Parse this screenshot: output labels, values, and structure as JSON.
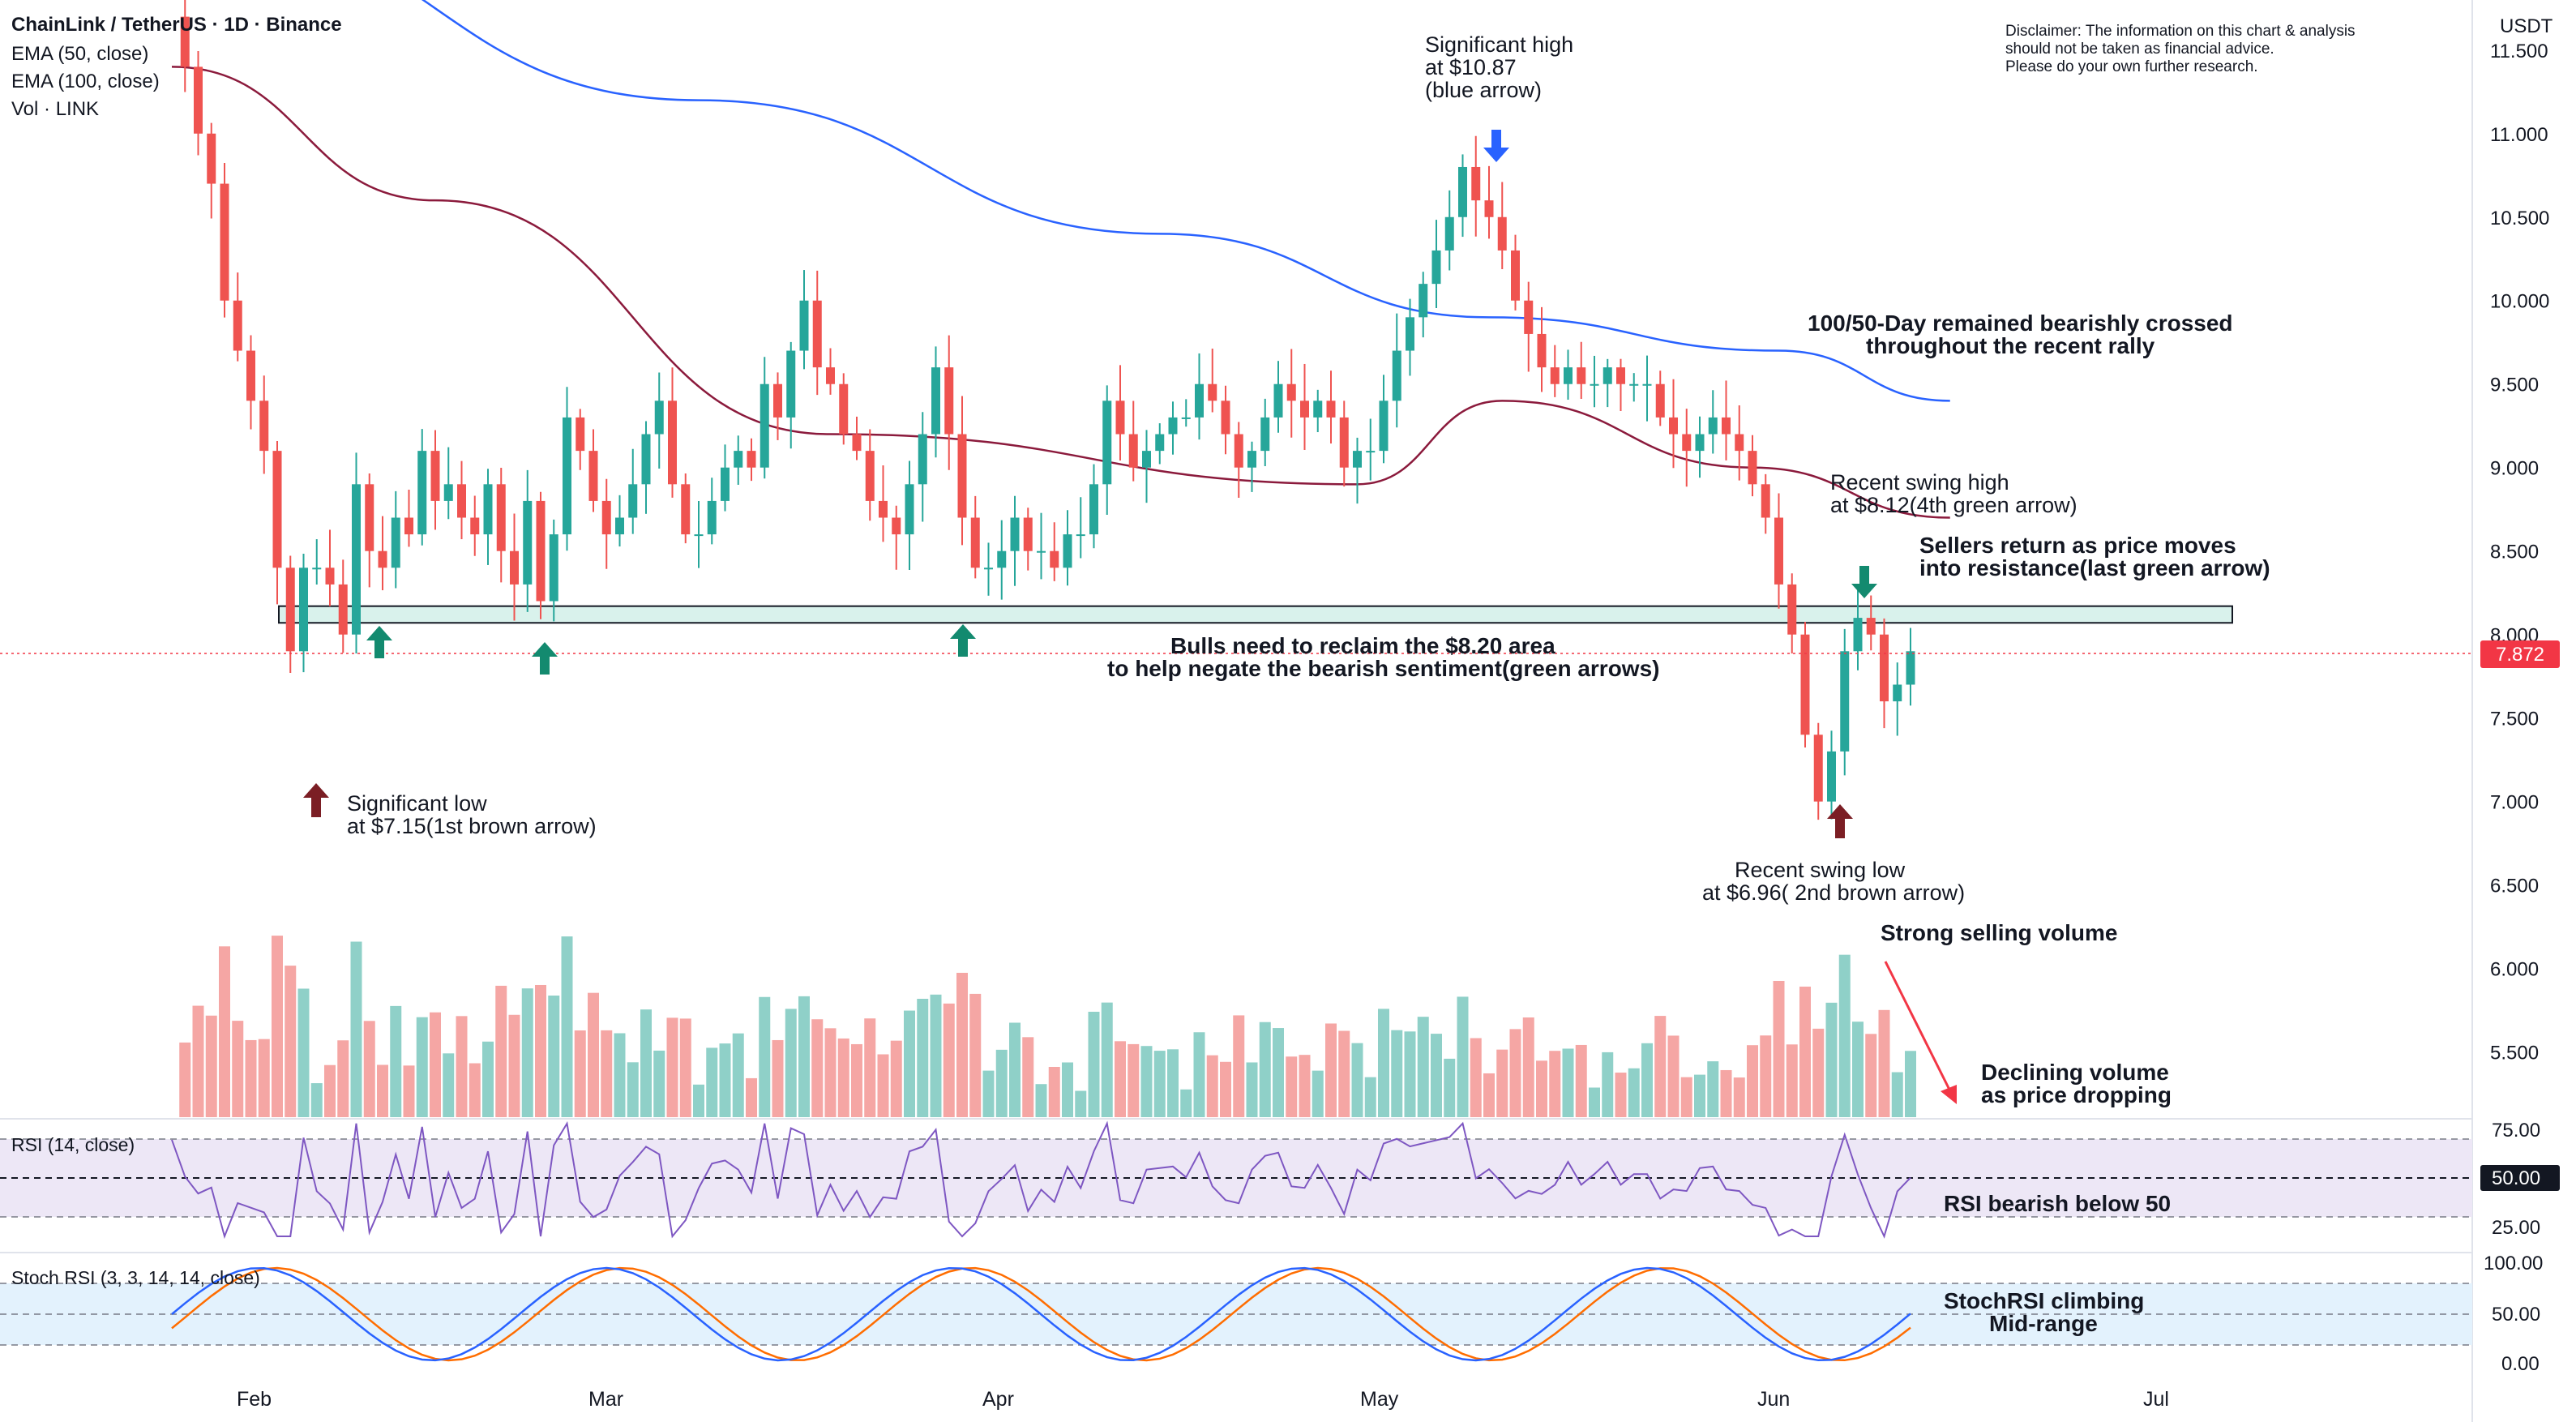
{
  "header": {
    "symbol": "ChainLink / TetherUS · 1D · Binance",
    "indicators": [
      "EMA (50, close)",
      "EMA (100, close)",
      "Vol · LINK"
    ],
    "currency": "USDT"
  },
  "disclaimer": [
    "Disclaimer: The information on this chart & analysis",
    "should not be taken as financial advice.",
    "Please do your own further research."
  ],
  "colors": {
    "up": "#26a69a",
    "down": "#ef5350",
    "vol_up": "#8fd0c8",
    "vol_down": "#f5a6a4",
    "ema50": "#8b1a3c",
    "ema100": "#2962ff",
    "zone_fill": "#d9f2ec",
    "arrow_green": "#138a6f",
    "arrow_brown": "#7b1e24",
    "arrow_blue": "#2962ff",
    "rsi": "#7e57c2",
    "rsi_band": "#ede7f6",
    "stoch_k": "#2962ff",
    "stoch_d": "#ff6d00",
    "stoch_band": "#e3f2fd",
    "current_price": "#f23645"
  },
  "current_price": "7.872",
  "time_labels": [
    "Feb",
    "Mar",
    "Apr",
    "May",
    "Jun",
    "Jul"
  ],
  "price_axis_labels": [
    "11.500",
    "11.000",
    "10.500",
    "10.000",
    "9.500",
    "9.000",
    "8.500",
    "8.000",
    "7.500",
    "7.000",
    "6.500",
    "6.000",
    "5.500"
  ],
  "rsi_panel": {
    "title": "RSI (14, close)",
    "labels": [
      "75.00",
      "50.00",
      "25.00"
    ]
  },
  "stoch_panel": {
    "title": "Stoch RSI (3, 3, 14, 14, close)",
    "labels": [
      "100.00",
      "50.00",
      "0.00"
    ]
  },
  "annotations": {
    "sig_high": [
      "Significant high",
      "at $10.87",
      "(blue arrow)"
    ],
    "sig_low": [
      "Significant low",
      "at $7.15(1st brown arrow)"
    ],
    "ema_cross": [
      "100/50-Day remained bearishly crossed",
      "throughout the recent rally"
    ],
    "swing_high": [
      "Recent swing high",
      "at $8.12(4th green arrow)"
    ],
    "sellers": [
      "Sellers return as price moves",
      "into resistance(last green arrow)"
    ],
    "bulls": [
      "Bulls need to reclaim the $8.20 area",
      "to help negate the bearish sentiment(green arrows)"
    ],
    "swing_low": [
      "Recent swing low",
      "at $6.96( 2nd brown arrow)"
    ],
    "strong_vol": "Strong selling volume",
    "declining_vol": [
      "Declining volume",
      "as price dropping"
    ],
    "rsi_note": "RSI bearish below 50",
    "stoch_note": [
      "StochRSI climbing",
      "Mid-range"
    ]
  },
  "chart_data": {
    "type": "candlestick",
    "pair": "LINK/USDT",
    "interval": "1D",
    "y_range": [
      5.1,
      11.8
    ],
    "resistance_zone": [
      8.07,
      8.17
    ],
    "significant_high": 10.87,
    "significant_low": 7.15,
    "recent_swing_high": 8.12,
    "recent_swing_low": 6.96,
    "close_series": [
      11.7,
      11.4,
      11.0,
      10.7,
      10.0,
      9.7,
      9.4,
      9.1,
      8.4,
      7.9,
      8.4,
      8.4,
      8.3,
      8.0,
      8.9,
      8.5,
      8.4,
      8.7,
      8.6,
      9.1,
      8.8,
      8.9,
      8.7,
      8.6,
      8.9,
      8.5,
      8.3,
      8.8,
      8.2,
      8.6,
      9.3,
      9.1,
      8.8,
      8.6,
      8.7,
      8.9,
      9.2,
      9.4,
      8.9,
      8.6,
      8.6,
      8.8,
      9.0,
      9.1,
      9.0,
      9.5,
      9.3,
      9.7,
      10.0,
      9.6,
      9.5,
      9.2,
      9.1,
      8.8,
      8.7,
      8.6,
      8.9,
      9.2,
      9.6,
      9.2,
      8.7,
      8.4,
      8.4,
      8.5,
      8.7,
      8.5,
      8.5,
      8.4,
      8.6,
      8.6,
      8.9,
      9.4,
      9.2,
      9.0,
      9.1,
      9.2,
      9.3,
      9.3,
      9.5,
      9.4,
      9.2,
      9.0,
      9.1,
      9.3,
      9.5,
      9.4,
      9.3,
      9.4,
      9.3,
      9.0,
      9.1,
      9.1,
      9.4,
      9.7,
      9.9,
      10.1,
      10.3,
      10.5,
      10.8,
      10.6,
      10.5,
      10.3,
      10.0,
      9.8,
      9.6,
      9.5,
      9.6,
      9.5,
      9.5,
      9.6,
      9.5,
      9.5,
      9.5,
      9.3,
      9.2,
      9.1,
      9.2,
      9.3,
      9.2,
      9.1,
      8.9,
      8.7,
      8.3,
      8.0,
      7.4,
      7.0,
      7.3,
      7.9,
      8.1,
      8.0,
      7.6,
      7.7,
      7.9
    ],
    "ema50_path": [
      [
        0,
        11.4
      ],
      [
        20,
        10.6
      ],
      [
        50,
        9.2
      ],
      [
        90,
        8.9
      ],
      [
        101,
        9.4
      ],
      [
        120,
        9.0
      ],
      [
        135,
        8.7
      ]
    ],
    "ema100_path": [
      [
        0,
        12.3
      ],
      [
        40,
        11.2
      ],
      [
        75,
        10.4
      ],
      [
        100,
        9.9
      ],
      [
        122,
        9.7
      ],
      [
        135,
        9.4
      ]
    ],
    "rsi_levels": {
      "upper": 70,
      "mid": 50,
      "lower": 30
    },
    "stoch_levels": {
      "upper": 80,
      "mid": 50,
      "lower": 20
    }
  }
}
